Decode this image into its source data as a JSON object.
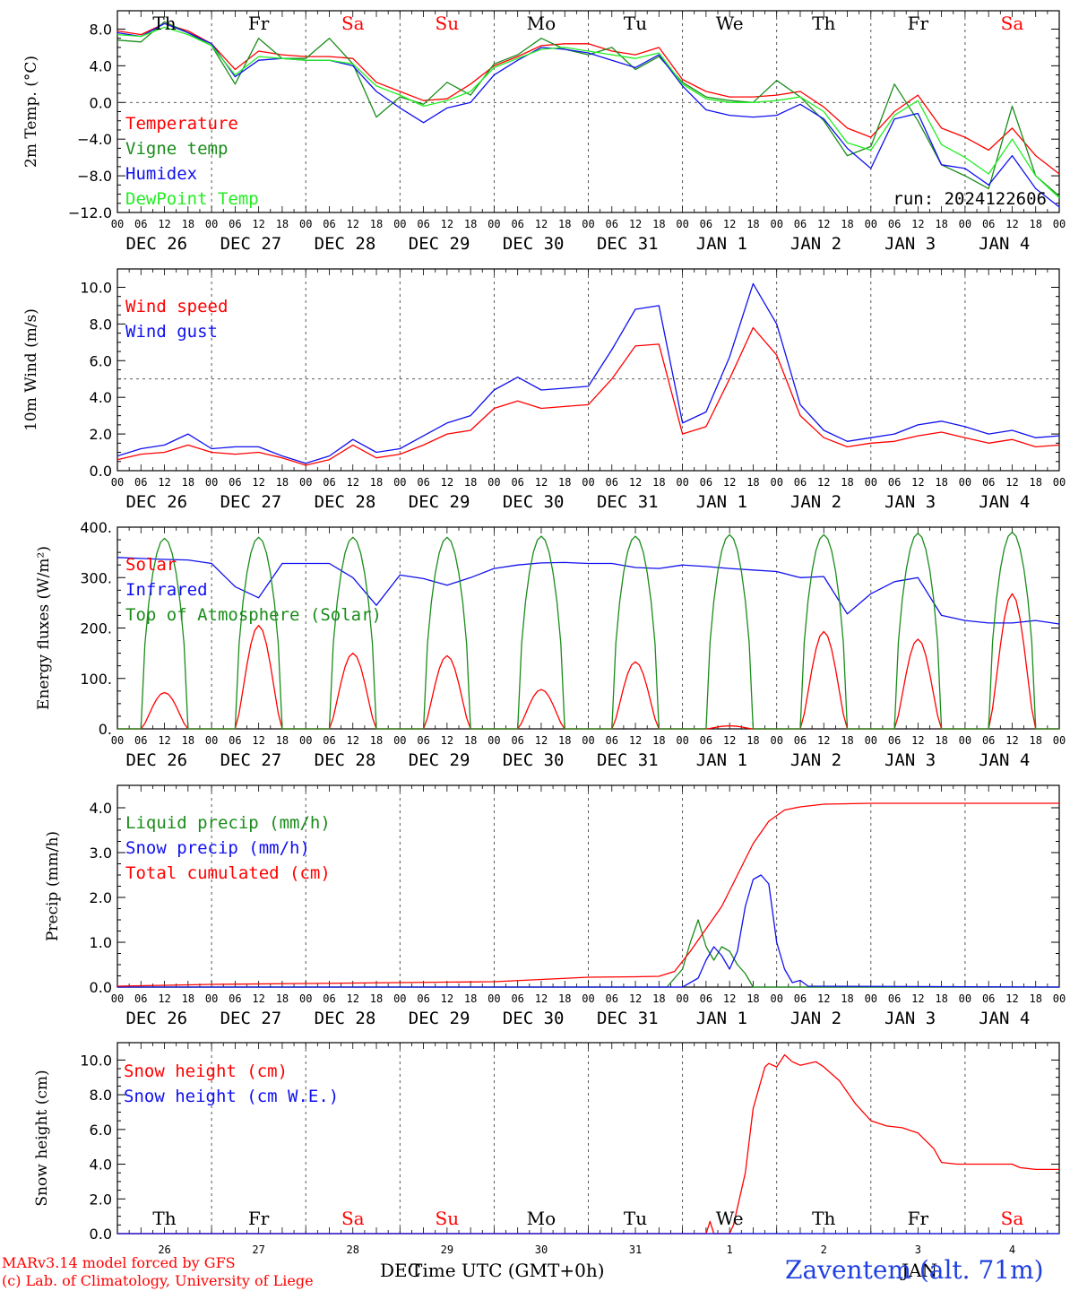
{
  "footer": {
    "model": "MARv3.14 model forced by GFS",
    "lab": "(c) Lab. of Climatology, University of Liege",
    "xlabel": "Time UTC (GMT+0h)",
    "dec": "DEC",
    "jan": "JAN",
    "station": "Zaventem (alt. 71m)"
  },
  "colors": {
    "red": "#ff0000",
    "green": "#1a8c1a",
    "blue": "#1010ee",
    "lightgreen": "#22ee22",
    "weekend": "#ff0000"
  },
  "days": [
    {
      "dow": "Th",
      "weekend": false,
      "date": "DEC 26",
      "num": "26"
    },
    {
      "dow": "Fr",
      "weekend": false,
      "date": "DEC 27",
      "num": "27"
    },
    {
      "dow": "Sa",
      "weekend": true,
      "date": "DEC 28",
      "num": "28"
    },
    {
      "dow": "Su",
      "weekend": true,
      "date": "DEC 29",
      "num": "29"
    },
    {
      "dow": "Mo",
      "weekend": false,
      "date": "DEC 30",
      "num": "30"
    },
    {
      "dow": "Tu",
      "weekend": false,
      "date": "DEC 31",
      "num": "31"
    },
    {
      "dow": "We",
      "weekend": false,
      "date": "JAN  1",
      "num": "1"
    },
    {
      "dow": "Th",
      "weekend": false,
      "date": "JAN  2",
      "num": "2"
    },
    {
      "dow": "Fr",
      "weekend": false,
      "date": "JAN  3",
      "num": "3"
    },
    {
      "dow": "Sa",
      "weekend": true,
      "date": "JAN  4",
      "num": "4"
    }
  ],
  "hour_ticks": [
    "00",
    "06",
    "12",
    "18"
  ],
  "chart_data": [
    {
      "type": "line",
      "ylabel": "2m Temp. (°C)",
      "ylim": [
        -12,
        10
      ],
      "yticks": [
        "8.0",
        "4.0",
        "0.0",
        "−4.0",
        "−8.0",
        "−12.0"
      ],
      "ytick_values": [
        8,
        4,
        0,
        -4,
        -8,
        -12
      ],
      "ref_line": 0,
      "annotation": "run: 2024122606",
      "x_unit": "hours since DEC 26 00 UTC",
      "series": [
        {
          "name": "Temperature",
          "color": "red",
          "x": [
            0,
            6,
            12,
            18,
            24,
            30,
            36,
            42,
            48,
            54,
            60,
            66,
            72,
            78,
            84,
            90,
            96,
            102,
            108,
            114,
            120,
            126,
            132,
            138,
            144,
            150,
            156,
            162,
            168,
            174,
            180,
            186,
            192,
            198,
            204,
            210,
            216,
            222,
            228,
            234,
            240
          ],
          "y": [
            7.8,
            7.4,
            8.6,
            7.8,
            6.4,
            3.6,
            5.6,
            5.2,
            5.0,
            5.0,
            4.8,
            2.2,
            1.2,
            0.2,
            0.4,
            2.0,
            4.0,
            5.0,
            6.2,
            6.4,
            6.4,
            5.6,
            5.2,
            6.0,
            2.5,
            1.2,
            0.6,
            0.6,
            0.8,
            1.2,
            -0.5,
            -2.8,
            -3.8,
            -1.0,
            0.8,
            -2.8,
            -3.8,
            -5.2,
            -2.8,
            -5.8,
            -7.8
          ]
        },
        {
          "name": "Vigne temp",
          "color": "green",
          "x": [
            0,
            6,
            12,
            18,
            24,
            30,
            36,
            42,
            48,
            54,
            60,
            66,
            72,
            78,
            84,
            90,
            96,
            102,
            108,
            114,
            120,
            126,
            132,
            138,
            144,
            150,
            156,
            162,
            168,
            174,
            180,
            186,
            192,
            198,
            204,
            210,
            216,
            222,
            228,
            234,
            240
          ],
          "y": [
            6.8,
            6.6,
            8.8,
            7.6,
            6.2,
            2.0,
            7.0,
            4.8,
            4.8,
            7.0,
            4.2,
            -1.6,
            0.6,
            -0.2,
            2.2,
            0.8,
            4.2,
            5.2,
            7.0,
            5.8,
            5.2,
            6.0,
            3.6,
            5.0,
            2.2,
            0.6,
            0.2,
            0.0,
            2.4,
            0.6,
            -2.0,
            -5.8,
            -4.8,
            2.0,
            -2.0,
            -6.8,
            -8.0,
            -9.4,
            -0.4,
            -8.0,
            -10.2
          ]
        },
        {
          "name": "Humidex",
          "color": "blue",
          "x": [
            0,
            6,
            12,
            18,
            24,
            30,
            36,
            42,
            48,
            54,
            60,
            66,
            72,
            78,
            84,
            90,
            96,
            102,
            108,
            114,
            120,
            126,
            132,
            138,
            144,
            150,
            156,
            162,
            168,
            174,
            180,
            186,
            192,
            198,
            204,
            210,
            216,
            222,
            228,
            234,
            240
          ],
          "y": [
            7.6,
            7.2,
            8.6,
            7.6,
            6.4,
            2.8,
            4.6,
            4.8,
            4.6,
            4.6,
            4.0,
            1.2,
            -0.6,
            -2.2,
            -0.6,
            0.0,
            3.0,
            4.6,
            6.0,
            5.8,
            5.4,
            4.6,
            3.8,
            5.2,
            1.8,
            -0.8,
            -1.4,
            -1.6,
            -1.4,
            -0.2,
            -1.8,
            -5.0,
            -7.2,
            -1.8,
            -1.2,
            -6.8,
            -7.2,
            -9.0,
            -5.8,
            -9.4,
            -11.4
          ]
        },
        {
          "name": "DewPoint Temp",
          "color": "lightgreen",
          "x": [
            0,
            6,
            12,
            18,
            24,
            30,
            36,
            42,
            48,
            54,
            60,
            66,
            72,
            78,
            84,
            90,
            96,
            102,
            108,
            114,
            120,
            126,
            132,
            138,
            144,
            150,
            156,
            162,
            168,
            174,
            180,
            186,
            192,
            198,
            204,
            210,
            216,
            222,
            228,
            234,
            240
          ],
          "y": [
            7.4,
            7.2,
            8.2,
            7.4,
            6.2,
            3.0,
            5.0,
            4.8,
            4.6,
            4.6,
            4.2,
            1.8,
            0.8,
            -0.4,
            0.2,
            1.2,
            3.8,
            4.8,
            5.8,
            6.0,
            5.6,
            5.2,
            4.8,
            5.4,
            2.0,
            0.4,
            0.0,
            0.0,
            0.2,
            0.6,
            -1.0,
            -4.4,
            -5.2,
            -1.4,
            0.2,
            -4.6,
            -6.0,
            -7.8,
            -4.0,
            -8.0,
            -10.4
          ]
        }
      ]
    },
    {
      "type": "line",
      "ylabel": "10m Wind (m/s)",
      "ylim": [
        0,
        11
      ],
      "yticks": [
        "10.0",
        "8.0",
        "6.0",
        "4.0",
        "2.0",
        "0.0"
      ],
      "ytick_values": [
        10,
        8,
        6,
        4,
        2,
        0
      ],
      "ref_line": 5,
      "x_unit": "hours since DEC 26 00 UTC",
      "series": [
        {
          "name": "Wind speed",
          "color": "red",
          "x": [
            0,
            6,
            12,
            18,
            24,
            30,
            36,
            42,
            48,
            54,
            60,
            66,
            72,
            78,
            84,
            90,
            96,
            102,
            108,
            114,
            120,
            126,
            132,
            138,
            144,
            150,
            156,
            162,
            168,
            174,
            180,
            186,
            192,
            198,
            204,
            210,
            216,
            222,
            228,
            234,
            240
          ],
          "y": [
            0.6,
            0.9,
            1.0,
            1.4,
            1.0,
            0.9,
            1.0,
            0.7,
            0.3,
            0.6,
            1.4,
            0.7,
            0.9,
            1.4,
            2.0,
            2.2,
            3.4,
            3.8,
            3.4,
            3.5,
            3.6,
            5.0,
            6.8,
            6.9,
            2.0,
            2.4,
            5.0,
            7.8,
            6.3,
            3.0,
            1.8,
            1.3,
            1.5,
            1.6,
            1.9,
            2.1,
            1.8,
            1.5,
            1.7,
            1.3,
            1.4
          ]
        },
        {
          "name": "Wind gust",
          "color": "blue",
          "x": [
            0,
            6,
            12,
            18,
            24,
            30,
            36,
            42,
            48,
            54,
            60,
            66,
            72,
            78,
            84,
            90,
            96,
            102,
            108,
            114,
            120,
            126,
            132,
            138,
            144,
            150,
            156,
            162,
            168,
            174,
            180,
            186,
            192,
            198,
            204,
            210,
            216,
            222,
            228,
            234,
            240
          ],
          "y": [
            0.8,
            1.2,
            1.4,
            2.0,
            1.2,
            1.3,
            1.3,
            0.8,
            0.4,
            0.8,
            1.7,
            1.0,
            1.2,
            1.9,
            2.6,
            3.0,
            4.4,
            5.1,
            4.4,
            4.5,
            4.6,
            6.6,
            8.8,
            9.0,
            2.6,
            3.2,
            6.2,
            10.2,
            8.0,
            3.6,
            2.2,
            1.6,
            1.8,
            2.0,
            2.5,
            2.7,
            2.4,
            2.0,
            2.2,
            1.8,
            1.9
          ]
        }
      ]
    },
    {
      "type": "line",
      "ylabel": "Energy fluxes (W/m²)",
      "ylim": [
        0,
        400
      ],
      "yticks": [
        "400.",
        "300.",
        "200.",
        "100.",
        "0."
      ],
      "ytick_values": [
        400,
        300,
        200,
        100,
        0
      ],
      "x_unit": "hours since DEC 26 00 UTC",
      "series": [
        {
          "name": "Solar",
          "color": "red",
          "peaks_hour": [
            12,
            36,
            60,
            84,
            108,
            132,
            156,
            180,
            204,
            228
          ],
          "peaks": [
            72,
            205,
            150,
            145,
            78,
            133,
            6,
            193,
            178,
            268
          ]
        },
        {
          "name": "Infrared",
          "color": "blue",
          "x": [
            0,
            6,
            12,
            18,
            24,
            30,
            36,
            42,
            48,
            54,
            60,
            66,
            72,
            78,
            84,
            90,
            96,
            102,
            108,
            114,
            120,
            126,
            132,
            138,
            144,
            150,
            156,
            162,
            168,
            174,
            180,
            186,
            192,
            198,
            204,
            210,
            216,
            222,
            228,
            234,
            240
          ],
          "y": [
            340,
            338,
            336,
            335,
            328,
            282,
            260,
            328,
            328,
            328,
            300,
            245,
            305,
            298,
            285,
            300,
            318,
            325,
            329,
            330,
            328,
            328,
            320,
            318,
            325,
            322,
            318,
            315,
            312,
            300,
            302,
            228,
            268,
            292,
            300,
            225,
            215,
            210,
            210,
            215,
            208
          ]
        },
        {
          "name": "Top of Atmosphere (Solar)",
          "color": "green",
          "peaks_hour": [
            12,
            36,
            60,
            84,
            108,
            132,
            156,
            180,
            204,
            228
          ],
          "peaks": [
            378,
            380,
            380,
            380,
            382,
            382,
            385,
            385,
            388,
            390
          ]
        }
      ]
    },
    {
      "type": "line",
      "ylabel": "Precip (mm/h)",
      "ylim": [
        0,
        4.5
      ],
      "yticks": [
        "4.0",
        "3.0",
        "2.0",
        "1.0",
        "0.0"
      ],
      "ytick_values": [
        4,
        3,
        2,
        1,
        0
      ],
      "x_unit": "hours since DEC 26 00 UTC",
      "series": [
        {
          "name": "Liquid precip (mm/h)",
          "color": "green",
          "x": [
            0,
            140,
            144,
            146,
            148,
            150,
            152,
            154,
            156,
            158,
            160,
            162,
            170,
            240
          ],
          "y": [
            0,
            0,
            0.4,
            1.0,
            1.5,
            0.9,
            0.6,
            0.9,
            0.8,
            0.5,
            0.3,
            0,
            0,
            0
          ]
        },
        {
          "name": "Snow precip (mm/h)",
          "color": "blue",
          "x": [
            0,
            144,
            148,
            150,
            152,
            154,
            156,
            158,
            160,
            162,
            164,
            166,
            168,
            170,
            172,
            174,
            176,
            240
          ],
          "y": [
            0,
            0,
            0.2,
            0.6,
            0.9,
            0.7,
            0.4,
            0.8,
            1.8,
            2.4,
            2.5,
            2.3,
            1.0,
            0.4,
            0.1,
            0.15,
            0.02,
            0
          ]
        },
        {
          "name": "Total cumulated (cm)",
          "color": "red",
          "x": [
            0,
            24,
            48,
            72,
            96,
            108,
            120,
            132,
            138,
            142,
            146,
            150,
            154,
            158,
            162,
            166,
            170,
            174,
            180,
            192,
            204,
            216,
            228,
            240
          ],
          "y": [
            0.02,
            0.06,
            0.08,
            0.1,
            0.12,
            0.17,
            0.22,
            0.23,
            0.24,
            0.35,
            0.8,
            1.3,
            1.8,
            2.5,
            3.2,
            3.7,
            3.95,
            4.02,
            4.08,
            4.1,
            4.1,
            4.1,
            4.1,
            4.1
          ]
        }
      ]
    },
    {
      "type": "line",
      "ylabel": "Snow height (cm)",
      "ylim": [
        0,
        11
      ],
      "yticks": [
        "10.0",
        "8.0",
        "6.0",
        "4.0",
        "2.0",
        "0.0"
      ],
      "ytick_values": [
        10,
        8,
        6,
        4,
        2,
        0
      ],
      "x_unit": "hours since DEC 26 00 UTC",
      "series": [
        {
          "name": "Snow height (cm)",
          "color": "red",
          "x": [
            0,
            144,
            150,
            151,
            152,
            155,
            156,
            157,
            160,
            162,
            165,
            166,
            168,
            170,
            172,
            174,
            176,
            178,
            180,
            184,
            188,
            192,
            196,
            200,
            204,
            208,
            210,
            214,
            218,
            222,
            228,
            230,
            234,
            240
          ],
          "y": [
            0,
            0,
            0,
            0.7,
            0,
            0,
            0,
            0.5,
            3.5,
            7.2,
            9.6,
            9.8,
            9.6,
            10.3,
            9.9,
            9.7,
            9.8,
            9.9,
            9.6,
            8.8,
            7.5,
            6.5,
            6.2,
            6.1,
            5.8,
            4.9,
            4.1,
            4.0,
            4.0,
            4.0,
            4.0,
            3.8,
            3.7,
            3.7
          ]
        },
        {
          "name": "Snow height (cm W.E.)",
          "color": "blue",
          "x": [
            0,
            240
          ],
          "y": [
            0,
            0
          ]
        }
      ]
    }
  ]
}
